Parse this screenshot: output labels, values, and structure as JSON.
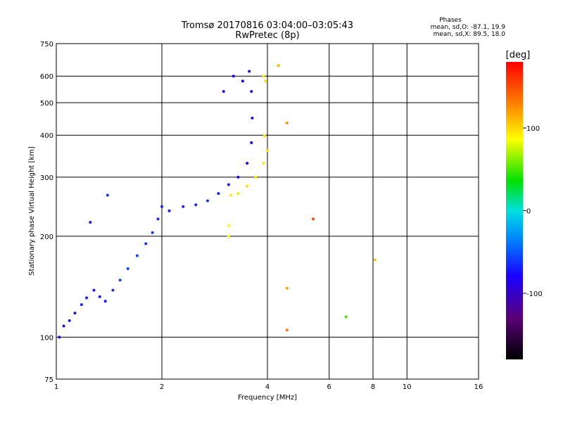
{
  "chart_data": {
    "type": "scatter",
    "title": "Tromsø 20170816 03:04:00–03:05:43",
    "subtitle": "RwPretec (8p)",
    "xlabel": "Frequency [MHz]",
    "ylabel": "Stationary phase Virtual Height [km]",
    "x_scale": "log",
    "y_scale": "log",
    "xlim": [
      1,
      16
    ],
    "ylim": [
      75,
      750
    ],
    "x_ticks": [
      1,
      2,
      4,
      6,
      8,
      10,
      16
    ],
    "y_ticks": [
      75,
      100,
      200,
      300,
      400,
      500,
      600,
      750
    ],
    "grid": true,
    "phase_box": {
      "title": "Phases",
      "line1": "mean, sd,O: -87.1, 19.9",
      "line2": "mean, sd,X:  89.5, 18.0"
    },
    "colorbar": {
      "label": "[deg]",
      "range": [
        -180,
        180
      ],
      "ticks": [
        100,
        0,
        -100
      ]
    },
    "series": [
      {
        "mode": "O",
        "points": [
          [
            1.02,
            100,
            -100
          ],
          [
            1.05,
            108,
            -95
          ],
          [
            1.09,
            112,
            -92
          ],
          [
            1.13,
            118,
            -95
          ],
          [
            1.18,
            125,
            -90
          ],
          [
            1.22,
            131,
            -88
          ],
          [
            1.28,
            138,
            -90
          ],
          [
            1.33,
            132,
            -95
          ],
          [
            1.38,
            128,
            -92
          ],
          [
            1.45,
            138,
            -85
          ],
          [
            1.52,
            148,
            -80
          ],
          [
            1.6,
            160,
            -78
          ],
          [
            1.7,
            175,
            -80
          ],
          [
            1.8,
            190,
            -82
          ],
          [
            1.88,
            205,
            -85
          ],
          [
            1.95,
            225,
            -88
          ],
          [
            2.0,
            245,
            -90
          ],
          [
            2.1,
            238,
            -92
          ],
          [
            2.3,
            245,
            -90
          ],
          [
            2.5,
            248,
            -88
          ],
          [
            2.7,
            255,
            -85
          ],
          [
            2.9,
            268,
            -90
          ],
          [
            3.1,
            285,
            -95
          ],
          [
            3.3,
            300,
            -100
          ],
          [
            3.5,
            330,
            -100
          ],
          [
            3.6,
            380,
            -98
          ],
          [
            3.62,
            450,
            -95
          ],
          [
            3.6,
            540,
            -95
          ],
          [
            3.4,
            580,
            -100
          ],
          [
            3.0,
            540,
            -105
          ],
          [
            3.2,
            600,
            -100
          ],
          [
            3.55,
            620,
            -95
          ],
          [
            1.25,
            220,
            -90
          ],
          [
            1.4,
            265,
            -85
          ]
        ]
      },
      {
        "mode": "X",
        "points": [
          [
            3.1,
            200,
            80
          ],
          [
            3.1,
            215,
            82
          ],
          [
            3.15,
            265,
            88
          ],
          [
            3.3,
            268,
            90
          ],
          [
            3.5,
            282,
            92
          ],
          [
            3.7,
            300,
            90
          ],
          [
            3.9,
            330,
            88
          ],
          [
            4.0,
            360,
            92
          ],
          [
            3.92,
            398,
            90
          ],
          [
            3.95,
            580,
            95
          ],
          [
            3.9,
            600,
            88
          ],
          [
            4.3,
            645,
            110
          ],
          [
            4.55,
            435,
            125
          ],
          [
            4.55,
            105,
            130
          ],
          [
            4.55,
            140,
            115
          ],
          [
            6.7,
            115,
            20
          ],
          [
            8.1,
            170,
            105
          ],
          [
            5.4,
            225,
            150
          ]
        ]
      }
    ]
  }
}
